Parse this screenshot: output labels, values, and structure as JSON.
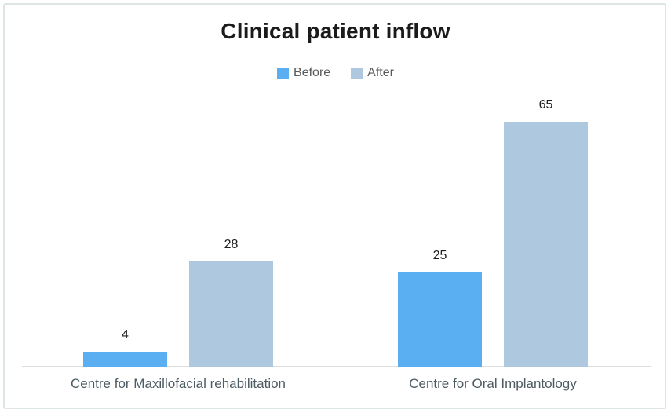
{
  "chart": {
    "title": "Clinical patient inflow"
  },
  "chart_data": {
    "type": "bar",
    "title": "Clinical patient inflow",
    "categories": [
      "Centre for Maxillofacial rehabilitation",
      "Centre for Oral Implantology"
    ],
    "series": [
      {
        "name": "Before",
        "color": "#5aaff2",
        "values": [
          4,
          25
        ]
      },
      {
        "name": "After",
        "color": "#aec8df",
        "values": [
          28,
          65
        ]
      }
    ],
    "data_labels": [
      [
        "4",
        "25"
      ],
      [
        "28",
        "65"
      ]
    ],
    "xlabel": "",
    "ylabel": "",
    "ylim": [
      0,
      70
    ],
    "grid": false,
    "axis_line_color": "#dadedf",
    "legend_position": "top-center",
    "title_color": "#1b1b1b",
    "legend_text_color": "#595959",
    "category_label_color": "#4d5b62",
    "value_label_color": "#1f1f1f",
    "frame_border_color": "#dde6e4"
  }
}
